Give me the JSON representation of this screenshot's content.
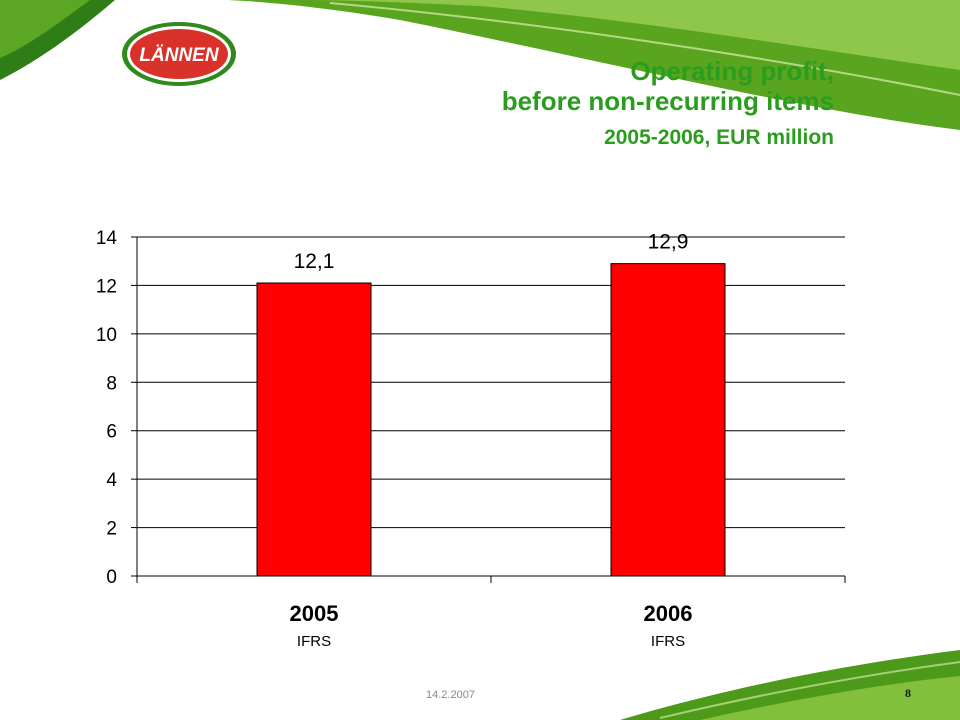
{
  "logo": {
    "text": "LÄNNEN"
  },
  "title": {
    "line1": "Operating profit,",
    "line2": "before non-recurring items",
    "line3": "2005-2006, EUR million"
  },
  "chart_data": {
    "type": "bar",
    "categories": [
      "2005",
      "2006"
    ],
    "category_sublabels": [
      "IFRS",
      "IFRS"
    ],
    "values": [
      12.1,
      12.9
    ],
    "data_labels": [
      "12,1",
      "12,9"
    ],
    "yticks": [
      "0",
      "2",
      "4",
      "6",
      "8",
      "10",
      "12",
      "14"
    ],
    "ylim": [
      0,
      14
    ],
    "grid": true,
    "legend": "none",
    "bar_color": "#ff0000"
  },
  "footer": {
    "date": "14.2.2007",
    "page": "8"
  },
  "colors": {
    "title": "#2a9d1f",
    "bar": "#ff0000",
    "logo_red": "#d8322a",
    "leaf_green": "#4f9e1e"
  }
}
